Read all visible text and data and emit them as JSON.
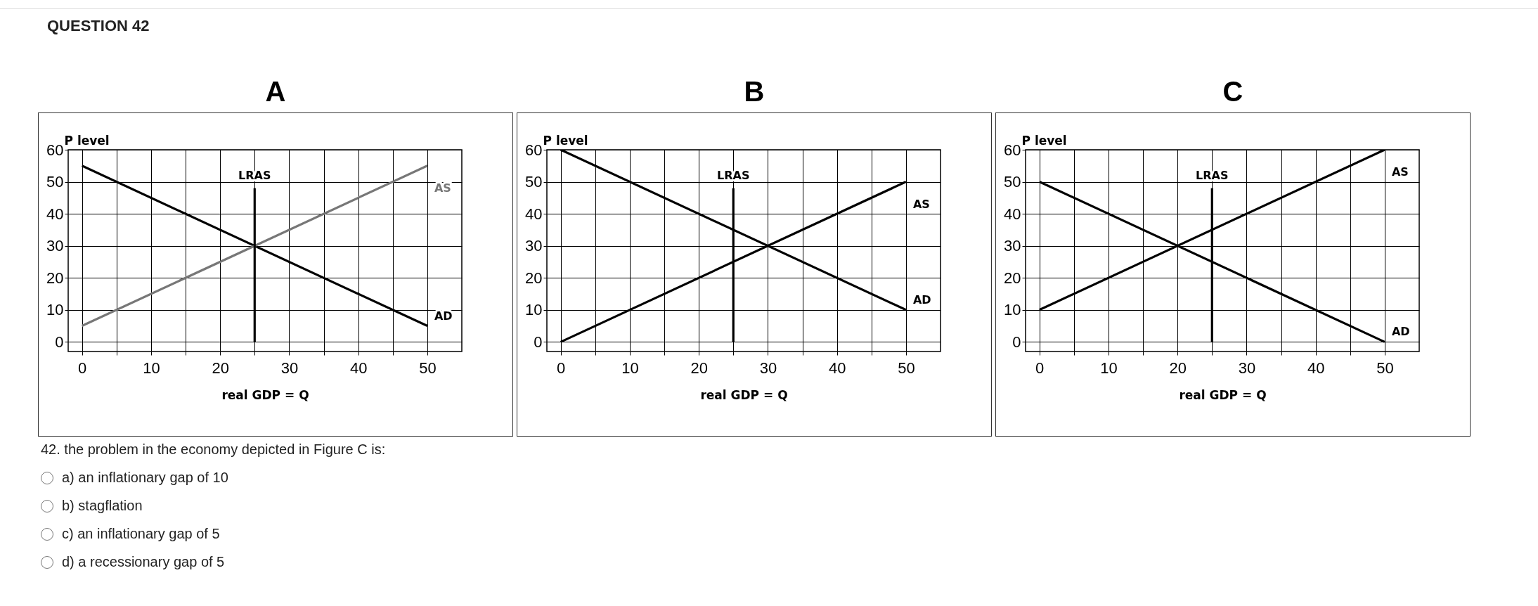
{
  "chart_data": [
    {
      "type": "line",
      "title": "A",
      "xlabel": "real GDP = Q",
      "ylabel": "P level",
      "xlim": [
        -2,
        55
      ],
      "ylim": [
        -3,
        60
      ],
      "xticks": [
        0,
        {
          "value": 5,
          "label": null
        },
        10,
        {
          "value": 15,
          "label": null
        },
        20,
        {
          "value": 25,
          "label": null
        },
        30,
        {
          "value": 35,
          "label": null
        },
        40,
        {
          "value": 45,
          "label": null
        },
        50
      ],
      "yticks": [
        0,
        10,
        20,
        30,
        40,
        50,
        60
      ],
      "grid": true,
      "legend": false,
      "series": [
        {
          "name": "AD",
          "color": "#000000",
          "x": [
            0,
            50
          ],
          "values": [
            55,
            5
          ]
        },
        {
          "name": "AS",
          "color": "#777777",
          "x": [
            0,
            50
          ],
          "values": [
            5,
            55
          ]
        },
        {
          "name": "LRAS",
          "color": "#000000",
          "x": [
            25,
            25
          ],
          "values": [
            0,
            48
          ]
        }
      ],
      "annotations": [
        "QUESTION 42",
        "42. the problem in the economy depicted in Figure C is:",
        "a) an inflationary gap of 10",
        "b) stagflation",
        "c) an inflationary gap of 5",
        "d) a recessionary gap of 5"
      ]
    },
    {
      "type": "line",
      "title": "B",
      "xlabel": "real GDP = Q",
      "ylabel": "P level",
      "xlim": [
        -2,
        55
      ],
      "ylim": [
        -3,
        60
      ],
      "xticks": [
        0,
        {
          "value": 5,
          "label": null
        },
        10,
        {
          "value": 15,
          "label": null
        },
        20,
        {
          "value": 25,
          "label": null
        },
        30,
        {
          "value": 35,
          "label": null
        },
        40,
        {
          "value": 45,
          "label": null
        },
        50
      ],
      "yticks": [
        0,
        10,
        20,
        30,
        40,
        50,
        60
      ],
      "grid": true,
      "legend": false,
      "series": [
        {
          "name": "AD",
          "color": "#000000",
          "x": [
            0,
            50
          ],
          "values": [
            60,
            10
          ]
        },
        {
          "name": "AS",
          "color": "#000000",
          "x": [
            0,
            50
          ],
          "values": [
            0,
            50
          ]
        },
        {
          "name": "LRAS",
          "color": "#000000",
          "x": [
            25,
            25
          ],
          "values": [
            0,
            48
          ]
        }
      ]
    },
    {
      "type": "line",
      "title": "C",
      "xlabel": "real GDP = Q",
      "ylabel": "P level",
      "xlim": [
        -2,
        55
      ],
      "ylim": [
        -3,
        60
      ],
      "xticks": [
        0,
        {
          "value": 5,
          "label": null
        },
        10,
        {
          "value": 15,
          "label": null
        },
        20,
        {
          "value": 25,
          "label": null
        },
        30,
        {
          "value": 35,
          "label": null
        },
        40,
        {
          "value": 45,
          "label": null
        },
        50
      ],
      "yticks": [
        0,
        10,
        20,
        30,
        40,
        50,
        60
      ],
      "grid": true,
      "legend": false,
      "series": [
        {
          "name": "AD",
          "color": "#000000",
          "x": [
            0,
            50
          ],
          "values": [
            50,
            0
          ]
        },
        {
          "name": "AS",
          "color": "#000000",
          "x": [
            0,
            50
          ],
          "values": [
            10,
            60
          ]
        },
        {
          "name": "LRAS",
          "color": "#000000",
          "x": [
            25,
            25
          ],
          "values": [
            0,
            48
          ]
        }
      ]
    }
  ]
}
